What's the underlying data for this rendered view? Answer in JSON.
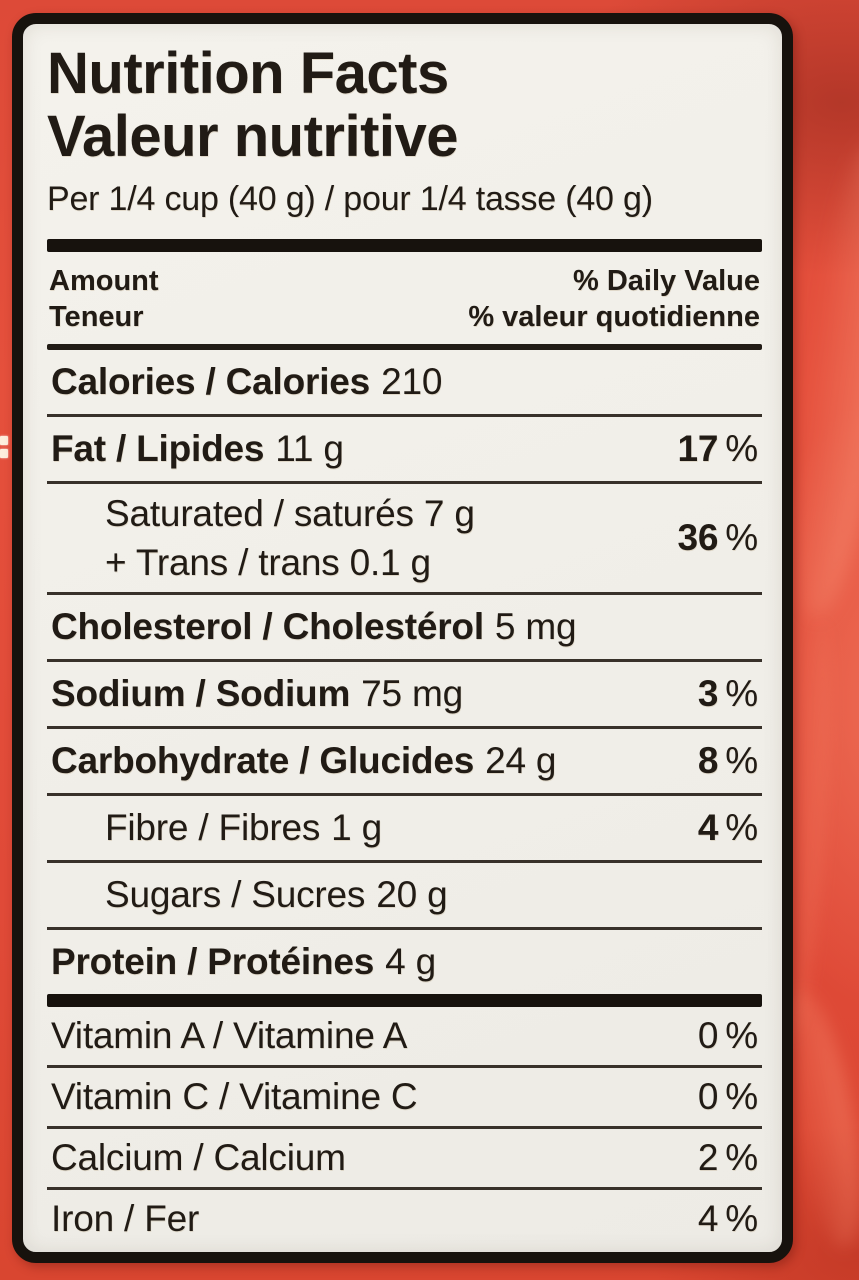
{
  "colors": {
    "bag_red": "#e04a38",
    "label_paper": "#f1efe9",
    "border_black": "#17120d",
    "text_black": "#211b15"
  },
  "label": {
    "title_en": "Nutrition Facts",
    "title_fr": "Valeur nutritive",
    "serving_line": "Per 1/4 cup (40 g) / pour 1/4 tasse (40 g)",
    "percent_sign": "%",
    "column_header": {
      "amount_en": "Amount",
      "amount_fr": "Teneur",
      "daily_value_en": "% Daily Value",
      "daily_value_fr": "% valeur quotidienne"
    },
    "rows": [
      {
        "name": "Calories / Calories",
        "value": "210",
        "percent": ""
      },
      {
        "name": "Fat / Lipides",
        "value": "11 g",
        "percent": "17"
      },
      {
        "line1": "Saturated / saturés 7 g",
        "line2": "+ Trans / trans 0.1 g",
        "percent": "36"
      },
      {
        "name": "Cholesterol / Cholestérol",
        "value": "5 mg",
        "percent": ""
      },
      {
        "name": "Sodium / Sodium",
        "value": "75 mg",
        "percent": "3"
      },
      {
        "name": "Carbohydrate / Glucides",
        "value": "24 g",
        "percent": "8"
      },
      {
        "name": "Fibre / Fibres",
        "value": "1 g",
        "percent": "4"
      },
      {
        "name": "Sugars / Sucres",
        "value": "20 g",
        "percent": ""
      },
      {
        "name": "Protein / Protéines",
        "value": "4 g",
        "percent": ""
      }
    ],
    "micronutrients": [
      {
        "name": "Vitamin A / Vitamine A",
        "percent": "0"
      },
      {
        "name": "Vitamin C / Vitamine C",
        "percent": "0"
      },
      {
        "name": "Calcium / Calcium",
        "percent": "2"
      },
      {
        "name": "Iron / Fer",
        "percent": "4"
      }
    ]
  }
}
